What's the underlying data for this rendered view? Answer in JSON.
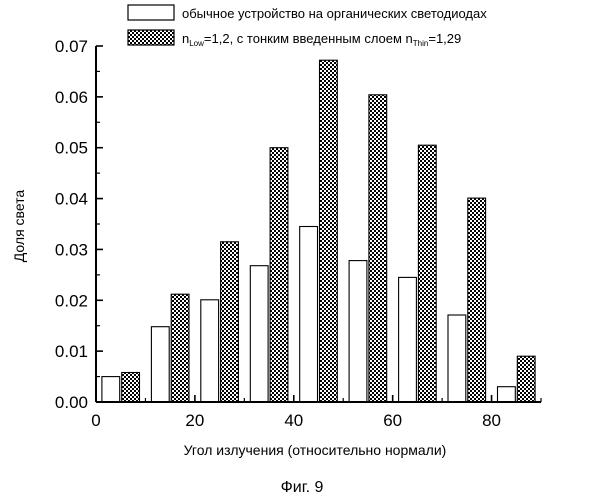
{
  "caption": "Фиг. 9",
  "chart_data": {
    "type": "bar",
    "xlabel": "Угол излучения (относительно нормали)",
    "ylabel": "Доля света",
    "x_ticks": [
      "0",
      "20",
      "40",
      "60",
      "80"
    ],
    "y_ticks": [
      "0.00",
      "0.01",
      "0.02",
      "0.03",
      "0.04",
      "0.05",
      "0.06",
      "0.07"
    ],
    "xlim": [
      0,
      90
    ],
    "ylim": [
      0,
      0.07
    ],
    "bin_centers": [
      5,
      15,
      25,
      35,
      45,
      55,
      65,
      75,
      85
    ],
    "legend_position": "top-right",
    "series": [
      {
        "name": "обычное устройство на органических светодиодах",
        "fill": "white",
        "values": [
          0.005,
          0.0148,
          0.0201,
          0.0268,
          0.0345,
          0.0278,
          0.0245,
          0.0171,
          0.003
        ]
      },
      {
        "name_parts": [
          "n",
          "Low",
          "=1,2, с тонким введенным слоем n",
          "Thin",
          "=1,29"
        ],
        "fill": "crosshatch",
        "values": [
          0.0058,
          0.0212,
          0.0315,
          0.05,
          0.0672,
          0.0604,
          0.0505,
          0.0401,
          0.009
        ]
      }
    ]
  }
}
